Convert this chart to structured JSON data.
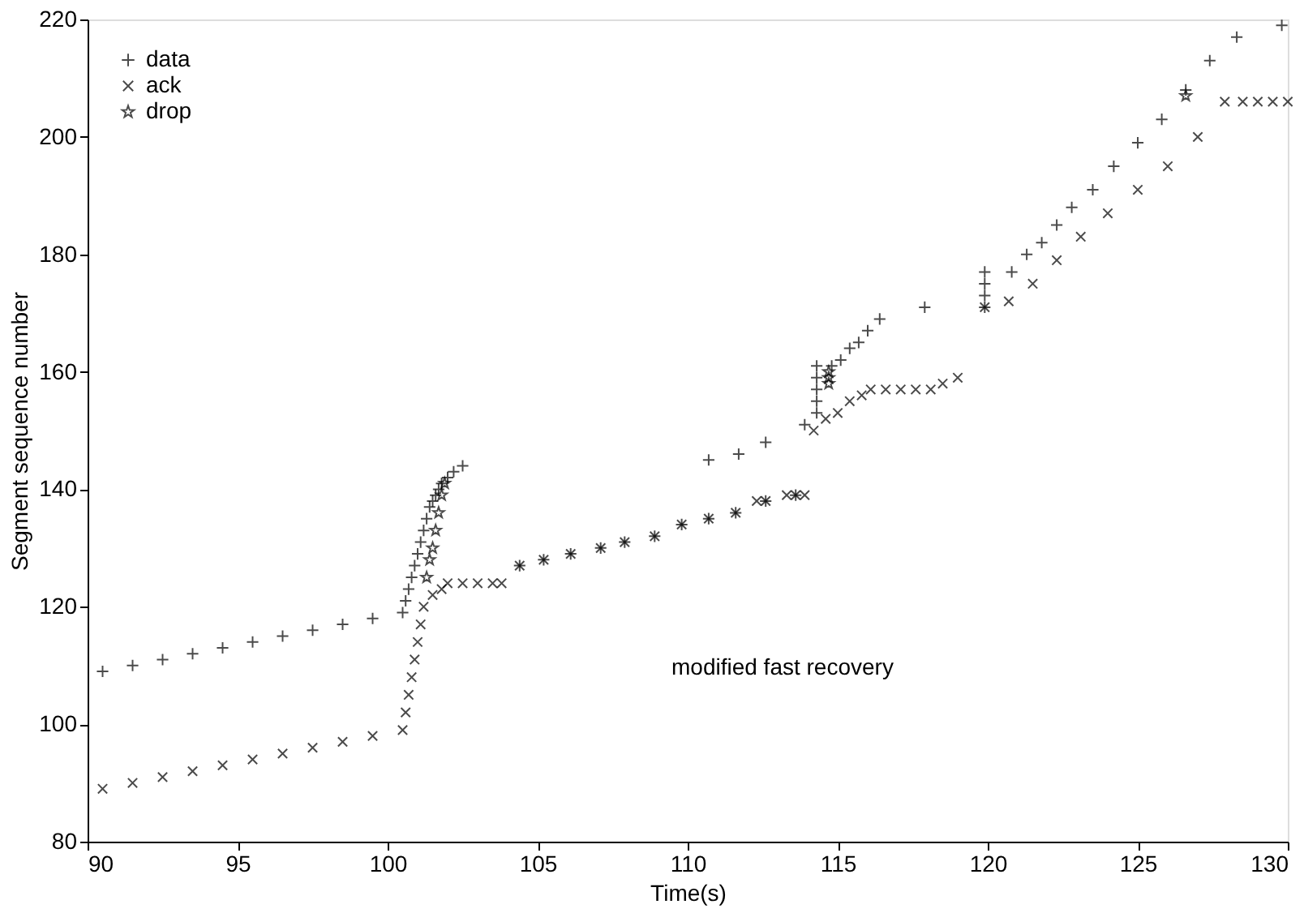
{
  "chart_data": {
    "type": "scatter",
    "xlabel": "Time(s)",
    "ylabel": "Segment sequence number",
    "xlim": [
      90,
      130
    ],
    "ylim": [
      80,
      220
    ],
    "xticks": [
      90,
      95,
      100,
      105,
      110,
      115,
      120,
      125,
      130
    ],
    "yticks": [
      80,
      100,
      120,
      140,
      160,
      180,
      200,
      220
    ],
    "grid": false,
    "legend": "top left",
    "annotations": [
      "modified fast recovery"
    ],
    "series": [
      {
        "name": "data",
        "color": "#000000",
        "marker": "cross",
        "x": [
          90.5,
          91.5,
          92.5,
          93.5,
          94.5,
          95.5,
          96.5,
          97.5,
          98.5,
          99.5,
          100.5,
          100.6,
          100.7,
          100.8,
          100.9,
          101.0,
          101.1,
          101.2,
          101.3,
          101.4,
          101.5,
          101.6,
          101.7,
          101.8,
          102.0,
          102.2,
          102.5,
          104.4,
          105.2,
          106.1,
          107.1,
          107.9,
          108.9,
          109.8,
          110.7,
          111.6,
          112.6,
          113.6,
          110.7,
          111.7,
          112.6,
          113.9,
          114.3,
          114.3,
          114.3,
          114.3,
          114.3,
          114.8,
          115.1,
          115.4,
          115.7,
          116.0,
          116.4,
          117.9,
          119.9,
          119.9,
          119.9,
          119.9,
          120.8,
          121.3,
          121.8,
          122.3,
          122.8,
          123.5,
          124.2,
          125.0,
          125.8,
          126.6,
          127.4,
          128.3,
          129.8
        ],
        "values": [
          109,
          110,
          111,
          112,
          113,
          114,
          115,
          116,
          117,
          118,
          119,
          121,
          123,
          125,
          127,
          129,
          131,
          133,
          135,
          137,
          138,
          139,
          140,
          141,
          142,
          143,
          144,
          127,
          128,
          129,
          130,
          131,
          132,
          134,
          135,
          136,
          138,
          139,
          145,
          146,
          148,
          151,
          153,
          155,
          157,
          159,
          161,
          161,
          162,
          164,
          165,
          167,
          169,
          171,
          171,
          173,
          175,
          177,
          177,
          180,
          182,
          185,
          188,
          191,
          195,
          199,
          203,
          208,
          213,
          217,
          219
        ]
      },
      {
        "name": "ack",
        "color": "#000000",
        "marker": "x",
        "x": [
          90.5,
          91.5,
          92.5,
          93.5,
          94.5,
          95.5,
          96.5,
          97.5,
          98.5,
          99.5,
          100.5,
          100.6,
          100.7,
          100.8,
          100.9,
          101.0,
          101.1,
          101.2,
          101.5,
          101.8,
          102.0,
          102.5,
          103.0,
          103.5,
          103.8,
          104.4,
          105.2,
          106.1,
          107.1,
          107.9,
          108.9,
          109.8,
          110.7,
          111.6,
          112.3,
          112.6,
          113.3,
          113.6,
          113.9,
          114.2,
          114.6,
          115.0,
          115.4,
          115.8,
          116.1,
          116.6,
          117.1,
          117.6,
          118.1,
          118.5,
          119.0,
          119.9,
          120.7,
          121.5,
          122.3,
          123.1,
          124.0,
          125.0,
          126.0,
          127.0,
          127.9,
          128.5,
          129.0,
          129.5,
          130.0
        ],
        "values": [
          89,
          90,
          91,
          92,
          93,
          94,
          95,
          96,
          97,
          98,
          99,
          102,
          105,
          108,
          111,
          114,
          117,
          120,
          122,
          123,
          124,
          124,
          124,
          124,
          124,
          127,
          128,
          129,
          130,
          131,
          132,
          134,
          135,
          136,
          138,
          138,
          139,
          139,
          139,
          150,
          152,
          153,
          155,
          156,
          157,
          157,
          157,
          157,
          157,
          158,
          159,
          171,
          172,
          175,
          179,
          183,
          187,
          191,
          195,
          200,
          206,
          206,
          206,
          206,
          206
        ]
      },
      {
        "name": "drop",
        "color": "#000000",
        "marker": "star",
        "x": [
          101.3,
          101.4,
          101.5,
          101.6,
          101.7,
          101.8,
          101.9,
          114.7,
          114.7,
          114.7,
          126.6
        ],
        "values": [
          125,
          128,
          130,
          133,
          136,
          139,
          141,
          158,
          159,
          160,
          207
        ]
      }
    ]
  }
}
